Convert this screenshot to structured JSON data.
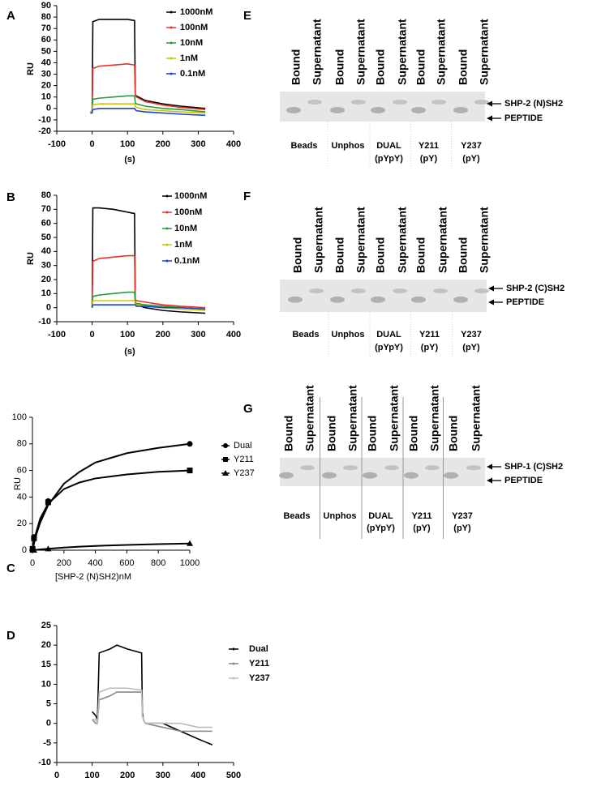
{
  "chart_data": [
    {
      "type": "line",
      "panel": "A",
      "y_label": "RU",
      "x_label": "(s)",
      "xlim": [
        -100,
        400
      ],
      "xticks": [
        -100,
        0,
        100,
        200,
        300,
        400
      ],
      "ylim": [
        -20,
        90
      ],
      "yticks": [
        -20,
        -10,
        0,
        10,
        20,
        30,
        40,
        50,
        60,
        70,
        80,
        90
      ],
      "x": [
        -5,
        0,
        2,
        20,
        60,
        100,
        120,
        122,
        125,
        150,
        200,
        250,
        320
      ],
      "series": [
        {
          "name": "1000nM",
          "color": "#000000",
          "values": [
            -3,
            -3,
            76,
            78,
            78,
            78,
            77,
            12,
            11,
            7,
            4,
            2,
            0
          ]
        },
        {
          "name": "100nM",
          "color": "#e8312a",
          "values": [
            -3,
            -3,
            35,
            37,
            38,
            39,
            38,
            12,
            10,
            6,
            3,
            1,
            -1
          ]
        },
        {
          "name": "10nM",
          "color": "#2a9a3a",
          "values": [
            -3,
            -3,
            8,
            9,
            10,
            11,
            11,
            5,
            4,
            2,
            0,
            -1,
            -3
          ]
        },
        {
          "name": "1nM",
          "color": "#c8c800",
          "values": [
            -3,
            -3,
            3,
            4,
            4,
            4,
            4,
            2,
            1,
            -1,
            -2,
            -3,
            -4
          ]
        },
        {
          "name": "0.1nM",
          "color": "#1f3fe0",
          "values": [
            -4,
            -4,
            -1,
            0,
            0,
            0,
            0,
            -1,
            -2,
            -3,
            -4,
            -5,
            -6
          ]
        }
      ]
    },
    {
      "type": "line",
      "panel": "B",
      "y_label": "RU",
      "x_label": "(s)",
      "xlim": [
        -100,
        400
      ],
      "xticks": [
        -100,
        0,
        100,
        200,
        300,
        400
      ],
      "ylim": [
        -10,
        80
      ],
      "yticks": [
        -10,
        0,
        10,
        20,
        30,
        40,
        50,
        60,
        70,
        80
      ],
      "x": [
        0,
        2,
        20,
        60,
        100,
        120,
        122,
        125,
        150,
        200,
        250,
        320
      ],
      "series": [
        {
          "name": "1000nM",
          "color": "#000000",
          "values": [
            0,
            71,
            71,
            70,
            68,
            67,
            3,
            2,
            0,
            -2,
            -3,
            -4
          ]
        },
        {
          "name": "100nM",
          "color": "#e8312a",
          "values": [
            0,
            33,
            35,
            36,
            37,
            37,
            6,
            5,
            4,
            2,
            1,
            0
          ]
        },
        {
          "name": "10nM",
          "color": "#2a9a3a",
          "values": [
            0,
            8,
            9,
            10,
            11,
            11,
            4,
            3,
            2,
            1,
            0,
            -1
          ]
        },
        {
          "name": "1nM",
          "color": "#c8c800",
          "values": [
            0,
            5,
            5,
            5,
            5,
            5,
            2,
            2,
            1,
            0,
            -1,
            -2
          ]
        },
        {
          "name": "0.1nM",
          "color": "#1f3fe0",
          "values": [
            0,
            2,
            2,
            2,
            2,
            2,
            2,
            1,
            1,
            0,
            0,
            -1
          ]
        }
      ]
    },
    {
      "type": "scatter",
      "panel": "C",
      "y_label": "RU",
      "x_label": "[SHP-2 (N)SH2)nM",
      "xlim": [
        0,
        1000
      ],
      "xticks": [
        0,
        200,
        400,
        600,
        800,
        1000
      ],
      "ylim": [
        0,
        100
      ],
      "yticks": [
        0,
        20,
        40,
        60,
        80,
        100
      ],
      "series": [
        {
          "name": "Dual",
          "color": "#000000",
          "marker": "circle",
          "x": [
            1,
            10,
            100,
            1000
          ],
          "values": [
            1,
            10,
            37,
            80
          ],
          "fit": {
            "x": [
              0,
              10,
              25,
              50,
              100,
              200,
              300,
              400,
              600,
              800,
              1000
            ],
            "values": [
              0,
              5,
              12,
              21,
              34,
              50,
              59,
              66,
              73,
              77,
              80
            ]
          }
        },
        {
          "name": "Y211",
          "color": "#000000",
          "marker": "square",
          "x": [
            1,
            10,
            100,
            1000
          ],
          "values": [
            1,
            9,
            36,
            60
          ],
          "fit": {
            "x": [
              0,
              10,
              25,
              50,
              100,
              200,
              300,
              400,
              600,
              800,
              1000
            ],
            "values": [
              0,
              7,
              14,
              24,
              35,
              46,
              51,
              54,
              57,
              59,
              60
            ]
          }
        },
        {
          "name": "Y237",
          "color": "#000000",
          "marker": "triangle",
          "x": [
            1,
            10,
            100,
            1000
          ],
          "values": [
            0,
            0,
            1,
            5
          ],
          "fit": {
            "x": [
              0,
              10,
              25,
              50,
              100,
              200,
              300,
              400,
              600,
              800,
              1000
            ],
            "values": [
              0,
              0.1,
              0.3,
              0.6,
              1.1,
              2,
              2.7,
              3.2,
              4,
              4.6,
              5
            ]
          }
        }
      ]
    },
    {
      "type": "line",
      "panel": "D",
      "xlim": [
        0,
        500
      ],
      "xticks": [
        0,
        100,
        200,
        300,
        400,
        500
      ],
      "ylim": [
        -10,
        25
      ],
      "yticks": [
        -10,
        -5,
        0,
        5,
        10,
        15,
        20,
        25
      ],
      "x": [
        100,
        110,
        115,
        120,
        150,
        170,
        200,
        240,
        242,
        245,
        250,
        300,
        350,
        400,
        440
      ],
      "series": [
        {
          "name": "Dual",
          "color": "#000000",
          "values": [
            3,
            2,
            1,
            18,
            19,
            20,
            19,
            18,
            3,
            1,
            0,
            0,
            -2,
            -4,
            -5.5
          ]
        },
        {
          "name": "Y211",
          "color": "#888888",
          "values": [
            1,
            0,
            0,
            6,
            7,
            8,
            8,
            8,
            2,
            1,
            0,
            -1,
            -2,
            -2,
            -2
          ]
        },
        {
          "name": "Y237",
          "color": "#bbbbbb",
          "values": [
            1,
            1,
            0,
            8,
            9,
            9,
            9,
            8.5,
            2,
            1,
            0,
            0,
            0,
            -1,
            -1
          ]
        }
      ]
    }
  ],
  "gels": [
    {
      "panel": "E",
      "columns": [
        "Bound",
        "Supernatant",
        "Bound",
        "Supernatant",
        "Bound",
        "Supernatant",
        "Bound",
        "Supernatant",
        "Bound",
        "Supernatant"
      ],
      "groups": [
        [
          "Beads"
        ],
        [
          "Unphos"
        ],
        [
          "DUAL",
          "(pYpY)"
        ],
        [
          "Y211",
          "(pY)"
        ],
        [
          "Y237",
          "(pY)"
        ]
      ],
      "bands": [
        "SHP-2 (N)SH2",
        "PEPTIDE"
      ]
    },
    {
      "panel": "F",
      "columns": [
        "Bound",
        "Supernatant",
        "Bound",
        "Supernatant",
        "Bound",
        "Supernatant",
        "Bound",
        "Supernatant",
        "Bound",
        "Supernatant"
      ],
      "groups": [
        [
          "Beads"
        ],
        [
          "Unphos"
        ],
        [
          "DUAL",
          "(pYpY)"
        ],
        [
          "Y211",
          "(pY)"
        ],
        [
          "Y237",
          "(pY)"
        ]
      ],
      "bands": [
        "SHP-2 (C)SH2",
        "PEPTIDE"
      ]
    },
    {
      "panel": "G",
      "columns": [
        "Bound",
        "Supernatant",
        "Bound",
        "Supernatant",
        "Bound",
        "Supernatant",
        "Bound",
        "Supernatant",
        "Bound",
        "Supernatant"
      ],
      "groups": [
        [
          "Beads"
        ],
        [
          "Unphos"
        ],
        [
          "DUAL",
          "(pYpY)"
        ],
        [
          "Y211",
          "(pY)"
        ],
        [
          "Y237",
          "(pY)"
        ]
      ],
      "bands": [
        "SHP-1 (C)SH2",
        "PEPTIDE"
      ]
    }
  ]
}
